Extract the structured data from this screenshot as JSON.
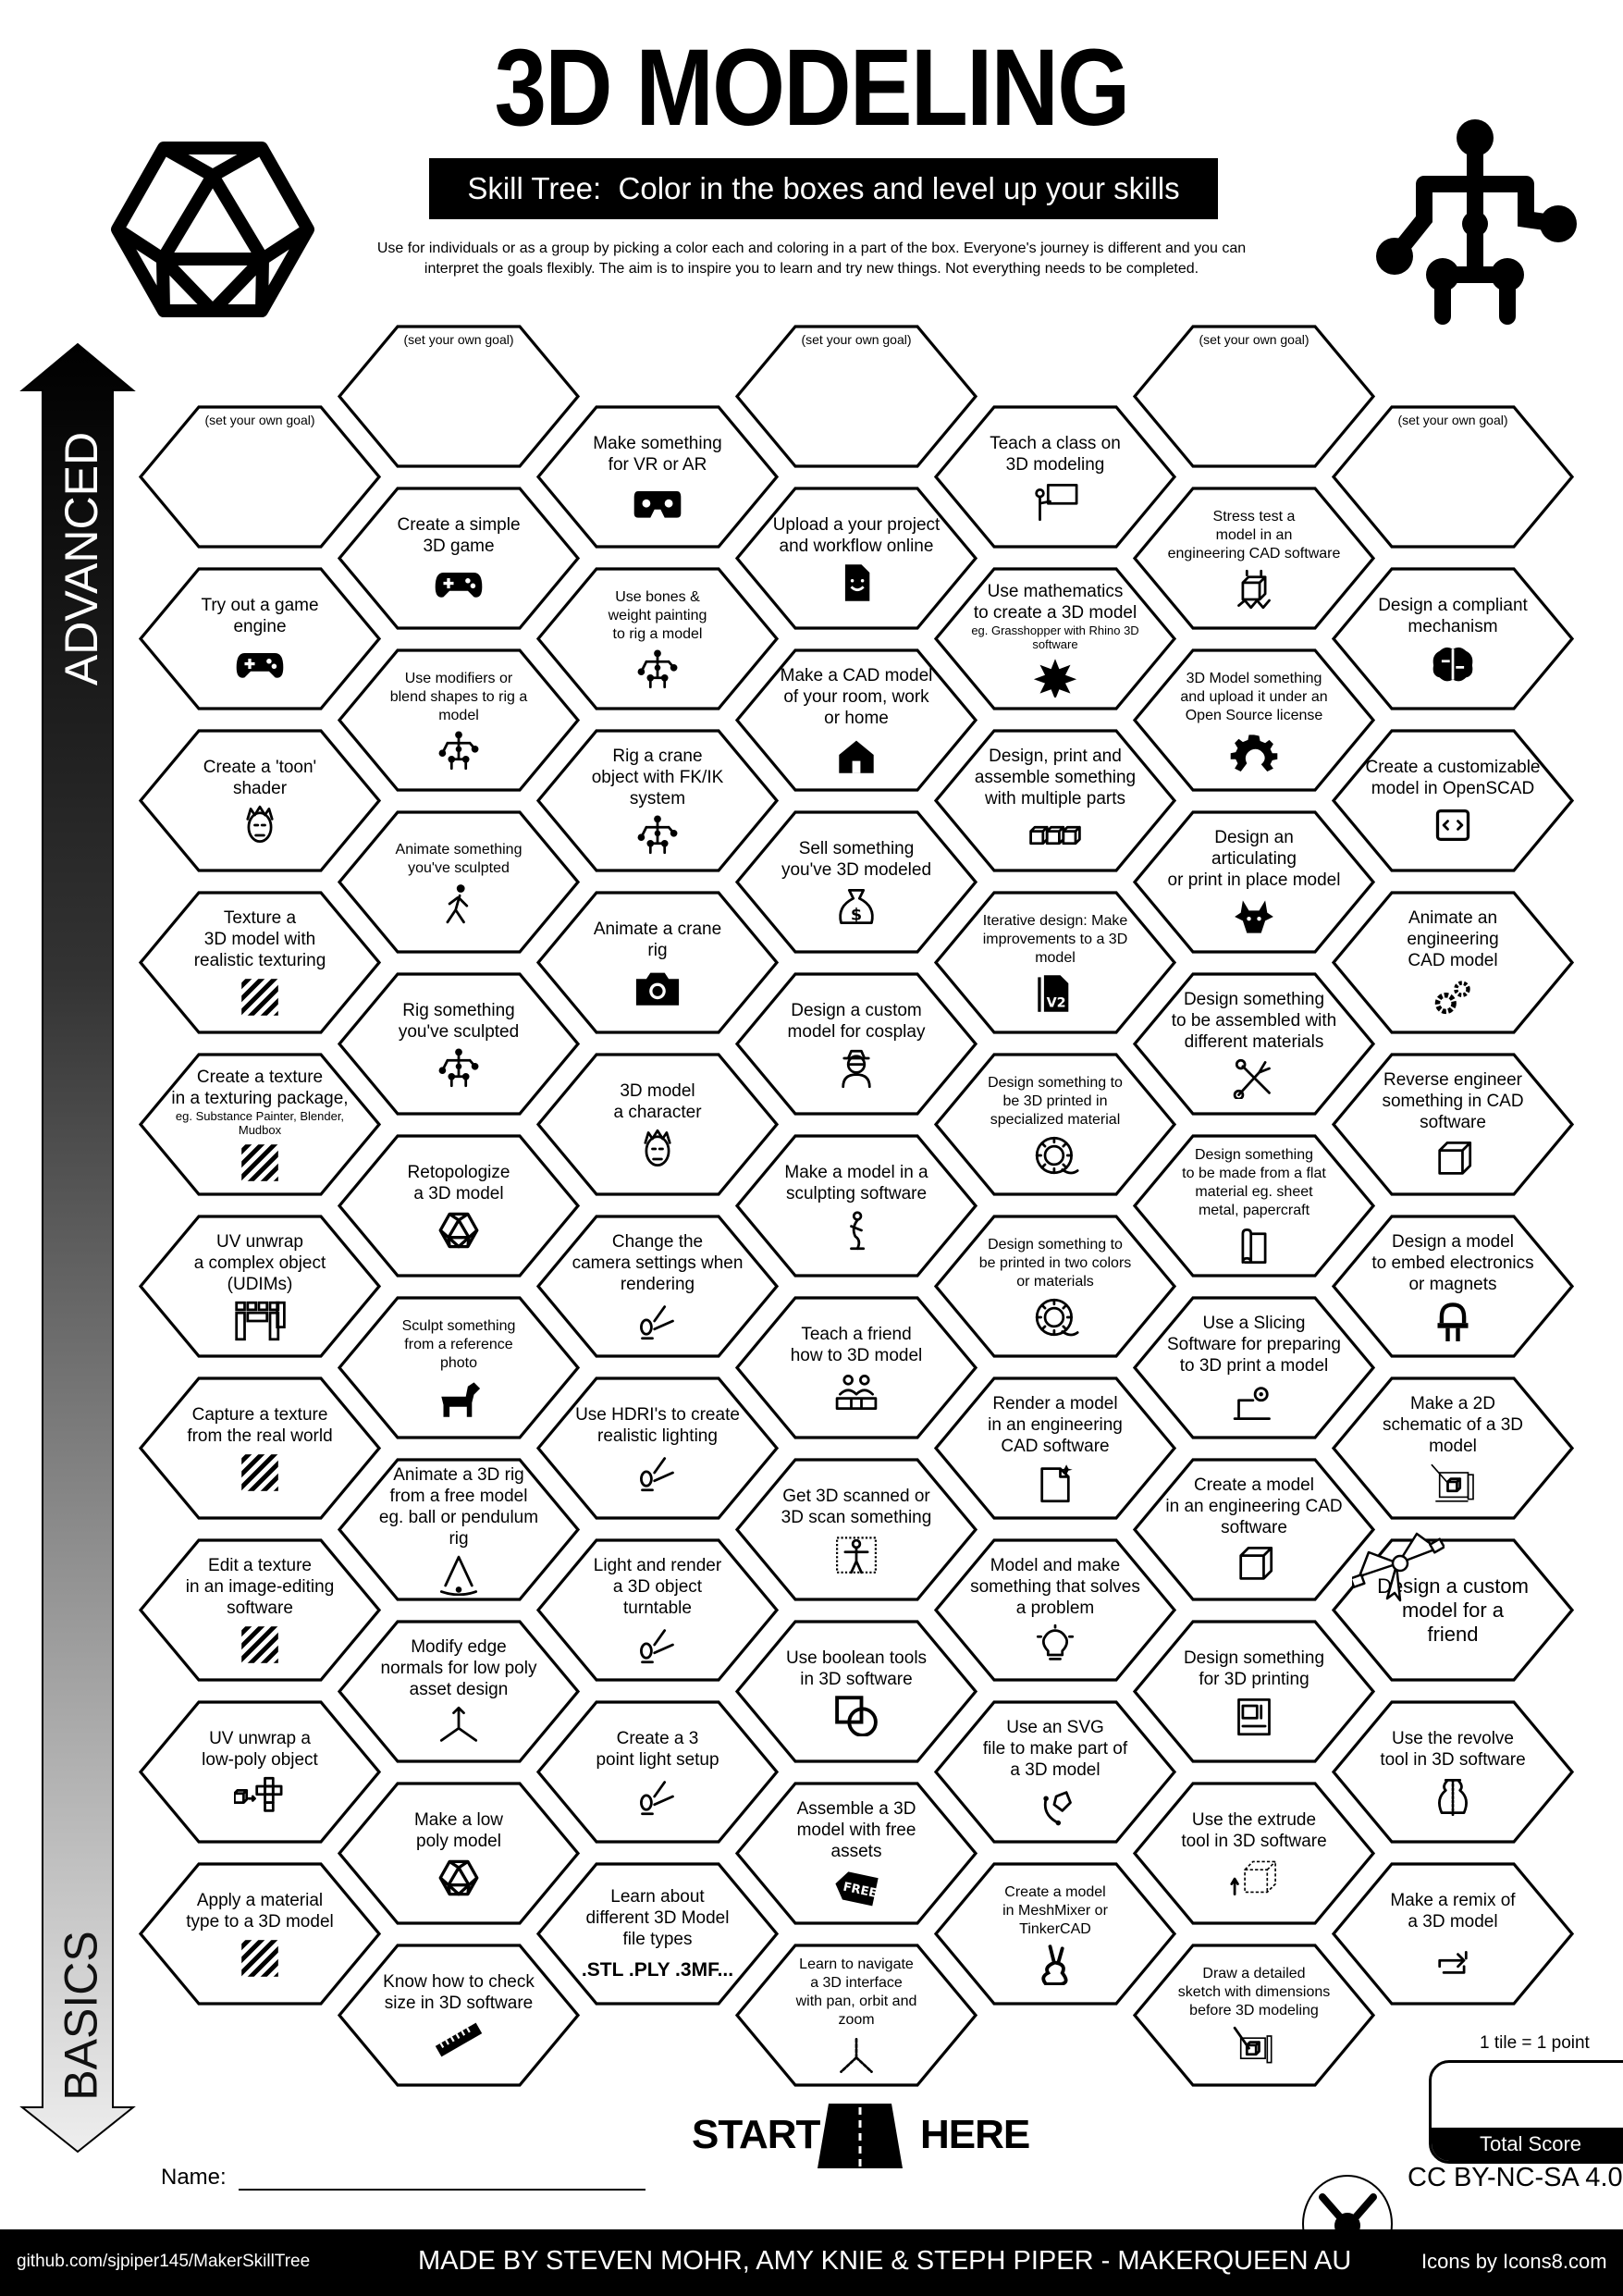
{
  "header": {
    "title": "3D MODELING",
    "subtitle": "Skill Tree:  Color in the boxes and level up your skills",
    "description": "Use for individuals or as a group by picking a color each and coloring in a part of the box.  Everyone's journey is different and you can\ninterpret the goals flexibly.  The aim is to inspire you to learn and try new things. Not everything needs to be completed."
  },
  "axis": {
    "top_label": "ADVANCED",
    "bottom_label": "BASICS"
  },
  "goal_label": "(set your own goal)",
  "columns": [
    [
      {
        "goal": true
      },
      {
        "text": "Try out a game\nengine",
        "icon": "gamepad"
      },
      {
        "text": "Create a 'toon'\nshader",
        "icon": "face"
      },
      {
        "text": "Texture a\n3D model with\nrealistic texturing",
        "icon": "hatch"
      },
      {
        "text": "Create a texture\nin a texturing package,",
        "note": "eg. Substance Painter, Blender,\nMudbox",
        "icon": "hatch"
      },
      {
        "text": "UV unwrap\na complex object\n(UDIMs)",
        "icon": "udim"
      },
      {
        "text": "Capture a texture\nfrom the real world",
        "icon": "hatch"
      },
      {
        "text": "Edit a texture\nin an image-editing\nsoftware",
        "icon": "hatch"
      },
      {
        "text": "UV unwrap a\nlow-poly object",
        "icon": "uv-unwrap"
      },
      {
        "text": "Apply a material\ntype to a 3D model",
        "icon": "hatch"
      }
    ],
    [
      {
        "goal": true
      },
      {
        "text": "Create a simple\n3D game",
        "icon": "gamepad"
      },
      {
        "text": "Use modifiers or\nblend shapes to rig a\nmodel",
        "size": "small",
        "icon": "rig"
      },
      {
        "text": "Animate something\nyou've sculpted",
        "size": "small",
        "icon": "walking-person"
      },
      {
        "text": "Rig something\nyou've sculpted",
        "icon": "rig"
      },
      {
        "text": "Retopologize\na 3D model",
        "icon": "icosahedron"
      },
      {
        "text": "Sculpt something\nfrom a reference\nphoto",
        "size": "small",
        "icon": "dog"
      },
      {
        "text": "Animate a 3D rig\nfrom a free model\neg. ball or pendulum rig",
        "icon": "pendulum"
      },
      {
        "text": "Modify edge\nnormals for low poly\nasset design",
        "icon": "normals"
      },
      {
        "text": "Make a low\npoly model",
        "icon": "icosahedron"
      },
      {
        "text": "Know how to check\nsize in 3D software",
        "icon": "ruler"
      }
    ],
    [
      {
        "text": "Make something\nfor VR or AR",
        "icon": "vr-headset"
      },
      {
        "text": "Use bones &\nweight painting\nto rig a model",
        "size": "small",
        "icon": "rig"
      },
      {
        "text": "Rig a crane\nobject with FK/IK\nsystem",
        "icon": "rig"
      },
      {
        "text": "Animate a crane\nrig",
        "icon": "camera"
      },
      {
        "text": "3D model\na character",
        "icon": "face"
      },
      {
        "text": "Change the\ncamera settings when\nrendering",
        "icon": "spotlight"
      },
      {
        "text": "Use HDRI's to create\nrealistic lighting",
        "icon": "spotlight"
      },
      {
        "text": "Light and render\na 3D object\nturntable",
        "icon": "spotlight"
      },
      {
        "text": "Create a 3\npoint light setup",
        "icon": "spotlight"
      },
      {
        "text": "Learn about\ndifferent 3D Model\nfile types",
        "extra": ".STL .PLY .3MF..."
      }
    ],
    [
      {
        "goal": true
      },
      {
        "text": "Upload a your project\nand workflow online",
        "icon": "document"
      },
      {
        "text": "Make a CAD model\nof your room, work\nor home",
        "icon": "house"
      },
      {
        "text": "Sell something\nyou've 3D modeled",
        "icon": "money-bag"
      },
      {
        "text": "Design a custom\nmodel for cosplay",
        "icon": "cosplay"
      },
      {
        "text": "Make a model in a\nsculpting software",
        "icon": "sculpture"
      },
      {
        "text": "Teach a friend\nhow to 3D model",
        "icon": "teacher"
      },
      {
        "text": "Get 3D scanned or\n3D scan something",
        "icon": "scan-person"
      },
      {
        "text": "Use boolean tools\nin 3D software",
        "icon": "boolean"
      },
      {
        "text": "Assemble a 3D\nmodel with free\nassets",
        "icon": "free-tag",
        "icon_text": "FREE"
      },
      {
        "text": "Learn to navigate\na 3D interface\nwith pan, orbit and\nzoom",
        "size": "small",
        "icon": "axis"
      }
    ],
    [
      {
        "text": "Teach a class on\n3D modeling",
        "icon": "presentation"
      },
      {
        "text": "Use mathematics\nto create a 3D model",
        "note": "eg. Grasshopper with Rhino 3D\nsoftware",
        "icon": "fractal"
      },
      {
        "text": "Design, print and\nassemble something\nwith multiple parts",
        "icon": "three-cubes"
      },
      {
        "text": "Iterative design:  Make\nimprovements to a 3D\nmodel",
        "size": "small",
        "icon": "v2-file",
        "icon_text": "V2"
      },
      {
        "text": "Design something to\nbe 3D printed in\nspecialized material",
        "size": "small",
        "icon": "spool"
      },
      {
        "text": "Design something to\nbe printed in two colors\nor materials",
        "size": "small",
        "icon": "spool"
      },
      {
        "text": "Render a model\nin an engineering\nCAD software",
        "icon": "cad-file"
      },
      {
        "text": "Model and make\nsomething that solves\na problem",
        "icon": "lightbulb"
      },
      {
        "text": "Use an SVG\nfile to make part of\na 3D model",
        "icon": "pen-tool"
      },
      {
        "text": "Create a model\nin MeshMixer or\nTinkerCAD",
        "size": "small",
        "icon": "rabbit"
      }
    ],
    [
      {
        "goal": true
      },
      {
        "text": "Stress test a\nmodel in an\nengineering CAD software",
        "size": "small",
        "icon": "stress-cube"
      },
      {
        "text": "3D Model something\nand upload it under an\nOpen Source license",
        "size": "small",
        "icon": "open-source"
      },
      {
        "text": "Design an\narticulating\nor print in place model",
        "icon": "dragon"
      },
      {
        "text": "Design something\nto be assembled with\ndifferent materials",
        "icon": "tools"
      },
      {
        "text": "Design something\nto be made from a flat\nmaterial eg. sheet\nmetal, papercraft",
        "size": "small",
        "icon": "paper"
      },
      {
        "text": "Use a Slicing\nSoftware for preparing\nto 3D print a model",
        "icon": "laptop-gear"
      },
      {
        "text": "Create a model\nin an engineering CAD\nsoftware",
        "icon": "cube"
      },
      {
        "text": "Design something\nfor 3D printing",
        "icon": "printer"
      },
      {
        "text": "Use the extrude\ntool in 3D software",
        "icon": "extrude"
      },
      {
        "text": "Draw a detailed\nsketch with dimensions\nbefore 3D modeling",
        "size": "small",
        "icon": "sketch"
      }
    ],
    [
      {
        "goal": true
      },
      {
        "text": "Design a compliant\nmechanism",
        "icon": "brain"
      },
      {
        "text": "Create a customizable\nmodel in OpenSCAD",
        "icon": "code-window"
      },
      {
        "text": "Animate an\nengineering\nCAD model",
        "icon": "gears"
      },
      {
        "text": "Reverse engineer\nsomething in CAD\nsoftware",
        "icon": "cube"
      },
      {
        "text": "Design a model\nto embed electronics\nor magnets",
        "icon": "led"
      },
      {
        "text": "Make a 2D\nschematic of a 3D\nmodel",
        "icon": "schematic"
      },
      {
        "text": "Design a custom\nmodel for a\nfriend",
        "size": "large",
        "overlay_icon": "gift-bow"
      },
      {
        "text": "Use the revolve\ntool in 3D software",
        "icon": "vase"
      },
      {
        "text": "Make a remix of\na 3D model",
        "icon": "remix"
      }
    ]
  ],
  "start": {
    "left": "START",
    "right": "HERE",
    "icon": "road"
  },
  "name_label": "Name:",
  "score": {
    "note": "1 tile = 1 point",
    "label": "Total Score"
  },
  "license": "CC BY-NC-SA 4.0",
  "footer": {
    "github": "github.com/sjpiper145/MakerSkillTree",
    "credits": "MADE BY STEVEN MOHR, AMY KNIE & STEPH PIPER  -  MAKERQUEEN AU",
    "icons_credit": "Icons by Icons8.com"
  }
}
